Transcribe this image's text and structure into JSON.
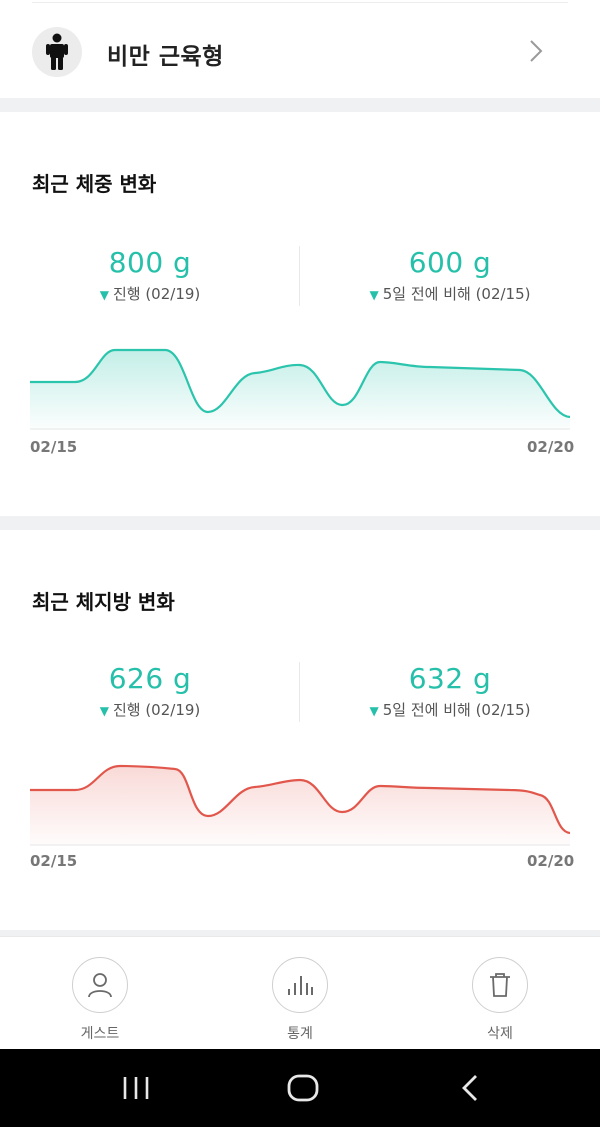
{
  "body_type": {
    "label": "비만 근육형"
  },
  "weight_card": {
    "title": "최근 체중 변화",
    "stat_left": {
      "value": "800 g",
      "sub": "진행 (02/19)"
    },
    "stat_right": {
      "value": "600 g",
      "sub": "5일 전에 비해 (02/15)"
    },
    "x_start": "02/15",
    "x_end": "02/20",
    "color": "#2bc4ac"
  },
  "fat_card": {
    "title": "최근 체지방 변화",
    "stat_left": {
      "value": "626 g",
      "sub": "진행 (02/19)"
    },
    "stat_right": {
      "value": "632 g",
      "sub": "5일 전에 비해 (02/15)"
    },
    "x_start": "02/15",
    "x_end": "02/20",
    "color": "#e2574c"
  },
  "nav": {
    "guest": "게스트",
    "stats": "통계",
    "delete": "삭제"
  },
  "icons": {
    "body": "person-icon",
    "chevron": "chevron-right-icon",
    "guest": "user-icon",
    "stats": "bar-chart-icon",
    "delete": "trash-icon",
    "sys_recents": "recents-icon",
    "sys_home": "home-icon",
    "sys_back": "back-icon"
  }
}
